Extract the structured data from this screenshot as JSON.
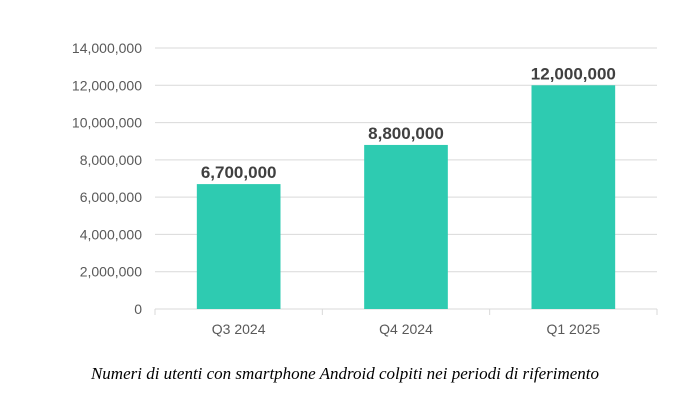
{
  "chart_data": {
    "type": "bar",
    "categories": [
      "Q3 2024",
      "Q4 2024",
      "Q1 2025"
    ],
    "values": [
      6700000,
      8800000,
      12000000
    ],
    "data_labels": [
      "6,700,000",
      "8,800,000",
      "12,000,000"
    ],
    "y_ticks": [
      0,
      2000000,
      4000000,
      6000000,
      8000000,
      10000000,
      12000000,
      14000000
    ],
    "y_tick_labels": [
      "0",
      "2,000,000",
      "4,000,000",
      "6,000,000",
      "8,000,000",
      "10,000,000",
      "12,000,000",
      "14,000,000"
    ],
    "ylim": [
      0,
      14000000
    ],
    "grid": true,
    "bar_color": "#2ECBB1",
    "title": "",
    "xlabel": "",
    "ylabel": ""
  },
  "caption": "Numeri di utenti con smartphone Android colpiti nei periodi di riferimento"
}
